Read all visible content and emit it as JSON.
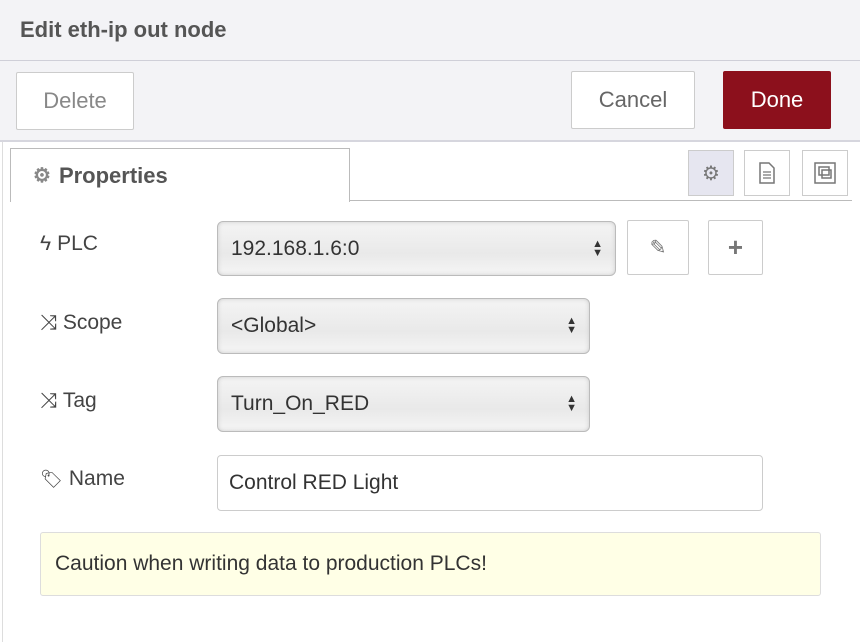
{
  "header": {
    "title": "Edit eth-ip out node"
  },
  "toolbar": {
    "delete_label": "Delete",
    "cancel_label": "Cancel",
    "done_label": "Done",
    "done_color": "#8c101c"
  },
  "tabs": {
    "properties_label": "Properties"
  },
  "side_buttons": [
    "gear-icon",
    "description-icon",
    "appearance-icon"
  ],
  "form": {
    "plc": {
      "label": "PLC",
      "value": "192.168.1.6:0"
    },
    "scope": {
      "label": "Scope",
      "value": "<Global>"
    },
    "tag": {
      "label": "Tag",
      "value": "Turn_On_RED"
    },
    "name": {
      "label": "Name",
      "value": "Control RED Light"
    }
  },
  "caution": "Caution when writing data to production PLCs!"
}
